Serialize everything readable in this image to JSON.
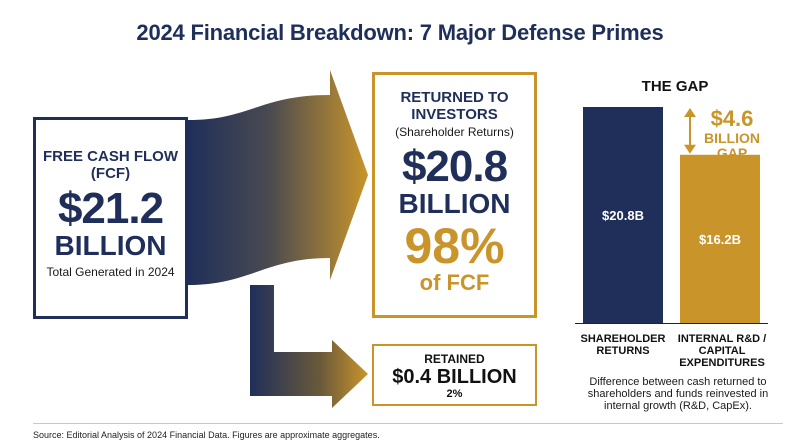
{
  "title": "2024 Financial Breakdown: 7 Major Defense Primes",
  "fcf": {
    "label_line1": "FREE CASH FLOW",
    "label_line2": "(FCF)",
    "amount": "$21.2",
    "unit": "BILLION",
    "subtitle": "Total Generated in 2024"
  },
  "returned": {
    "heading_line1": "RETURNED TO",
    "heading_line2": "INVESTORS",
    "subheading": "(Shareholder Returns)",
    "amount": "$20.8",
    "unit": "BILLION",
    "percent": "98%",
    "percent_label": "of FCF"
  },
  "retained": {
    "label": "RETAINED",
    "amount": "$0.4 BILLION",
    "percent": "2%"
  },
  "gap": {
    "title": "THE GAP",
    "callout_value": "$4.6",
    "callout_line2": "BILLION",
    "callout_line3": "GAP",
    "note": "Difference between cash returned to shareholders and funds reinvested in internal growth (R&D, CapEx)."
  },
  "colors": {
    "navy": "#1f2f5a",
    "gold": "#c9952b"
  },
  "chart_data": {
    "type": "bar",
    "title": "THE GAP",
    "categories": [
      "SHAREHOLDER RETURNS",
      "INTERNAL R&D / CAPITAL EXPENDITURES"
    ],
    "values": [
      20.8,
      16.2
    ],
    "value_labels": [
      "$20.8B",
      "$16.2B"
    ],
    "bar_colors": [
      "#1f2f5a",
      "#c9952b"
    ],
    "ylim": [
      0,
      20.8
    ],
    "grid": false,
    "legend": "none"
  },
  "source": "Source: Editorial Analysis of 2024 Financial Data. Figures are approximate aggregates."
}
